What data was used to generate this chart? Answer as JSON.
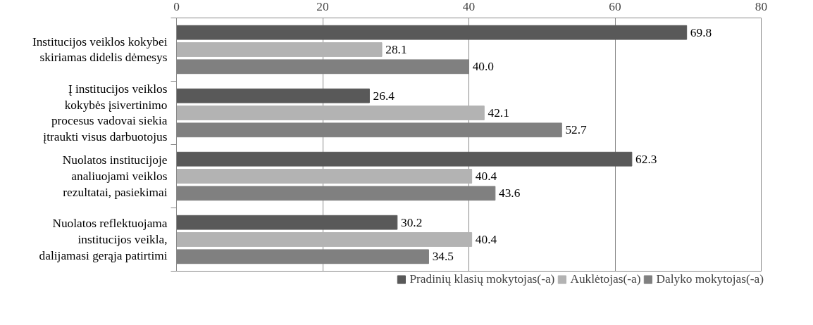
{
  "chart_data": {
    "type": "bar",
    "orientation": "horizontal",
    "categories": [
      "Institucijos veiklos kokybei skiriamas didelis dėmesys",
      "Į institucijos veiklos kokybės įsivertinimo procesus vadovai siekia įtraukti visus darbuotojus",
      "Nuolatos institucijoje analiuojami veiklos rezultatai, pasiekimai",
      "Nuolatos reflektuojama institucijos veikla, dalijamasi gerąja patirtimi"
    ],
    "series": [
      {
        "name": "Pradinių klasių mokytojas(-a)",
        "color": "#595959",
        "values": [
          69.8,
          26.4,
          62.3,
          30.2
        ]
      },
      {
        "name": "Auklėtojas(-a)",
        "color": "#b3b3b3",
        "values": [
          28.1,
          42.1,
          40.4,
          40.4
        ]
      },
      {
        "name": "Dalyko mokytojas(-a)",
        "color": "#808080",
        "values": [
          40.0,
          52.7,
          43.6,
          34.5
        ]
      }
    ],
    "value_labels": [
      [
        "69.8",
        "26.4",
        "62.3",
        "30.2"
      ],
      [
        "28.1",
        "42.1",
        "40.4",
        "40.4"
      ],
      [
        "40.0",
        "52.7",
        "43.6",
        "34.5"
      ]
    ],
    "xlim": [
      0,
      80
    ],
    "xticks": [
      0,
      20,
      40,
      60,
      80
    ],
    "grid": "x",
    "legend": "bottom"
  }
}
